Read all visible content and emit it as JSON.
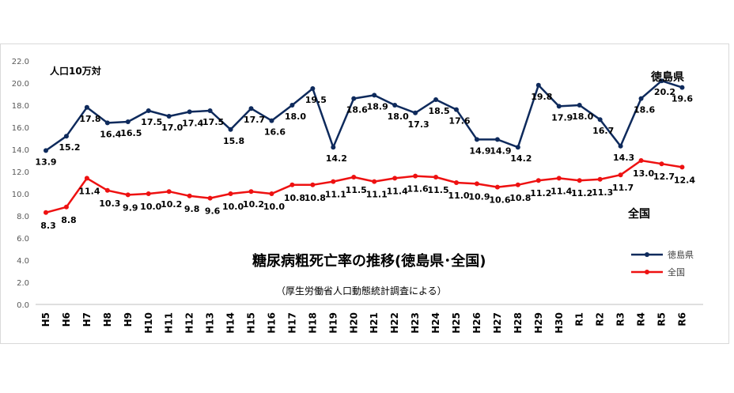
{
  "chart_data": {
    "type": "line",
    "title": "糖尿病粗死亡率の推移(徳島県･全国)",
    "subtitle": "（厚生労働省人口動態統計調査による）",
    "unit_label": "人口10万対",
    "ylim": [
      0,
      22
    ],
    "y_ticks": [
      "0.0",
      "2.0",
      "4.0",
      "6.0",
      "8.0",
      "10.0",
      "12.0",
      "14.0",
      "16.0",
      "18.0",
      "20.0",
      "22.0"
    ],
    "categories": [
      "H5",
      "H6",
      "H7",
      "H8",
      "H9",
      "H10",
      "H11",
      "H12",
      "H13",
      "H14",
      "H15",
      "H16",
      "H17",
      "H18",
      "H19",
      "H20",
      "H21",
      "H22",
      "H23",
      "H24",
      "H25",
      "H26",
      "H27",
      "H28",
      "H29",
      "H30",
      "R1",
      "R2",
      "R3",
      "R4",
      "R5",
      "R6"
    ],
    "grid": false,
    "legend_position": "right",
    "series": [
      {
        "name": "徳島県",
        "chart_label": "徳島県",
        "color": "#0e2a5c",
        "values": [
          13.9,
          15.2,
          17.8,
          16.4,
          16.5,
          17.5,
          17.0,
          17.4,
          17.5,
          15.8,
          17.7,
          16.6,
          18.0,
          19.5,
          14.2,
          18.6,
          18.9,
          18.0,
          17.3,
          18.5,
          17.6,
          14.9,
          14.9,
          14.2,
          19.8,
          17.9,
          18.0,
          16.7,
          14.3,
          18.6,
          20.2,
          19.6
        ],
        "labels": [
          "13.9",
          "15.2",
          "17.8",
          "16.4",
          "16.5",
          "17.5",
          "17.0",
          "17.4",
          "17.5",
          "15.8",
          "17.7",
          "16.6",
          "18.0",
          "19.5",
          "14.2",
          "18.6",
          "18.9",
          "18.0",
          "17.3",
          "18.5",
          "17.6",
          "14.9",
          "14.9",
          "14.2",
          "19.8",
          "17.9",
          "18.0",
          "16.7",
          "14.3",
          "18.6",
          "20.2",
          "19.6"
        ]
      },
      {
        "name": "全国",
        "chart_label": "全国",
        "color": "#ee1111",
        "values": [
          8.3,
          8.8,
          11.4,
          10.3,
          9.9,
          10.0,
          10.2,
          9.8,
          9.6,
          10.0,
          10.2,
          10.0,
          10.8,
          10.8,
          11.1,
          11.5,
          11.1,
          11.4,
          11.6,
          11.5,
          11.0,
          10.9,
          10.6,
          10.8,
          11.2,
          11.4,
          11.2,
          11.3,
          11.7,
          13.0,
          12.7,
          12.4
        ],
        "labels": [
          "8.3",
          "8.8",
          "11.4",
          "10.3",
          "9.9",
          "10.0",
          "10.2",
          "9.8",
          "9.6",
          "10.0",
          "10.2",
          "10.0",
          "10.8",
          "10.8",
          "11.1",
          "11.5",
          "11.1",
          "11.4",
          "11.6",
          "11.5",
          "11.0",
          "10.9",
          "10.6",
          "10.8",
          "11.2",
          "11.4",
          "11.2",
          "11.3",
          "11.7",
          "13.0",
          "12.7",
          "12.4"
        ]
      }
    ]
  }
}
